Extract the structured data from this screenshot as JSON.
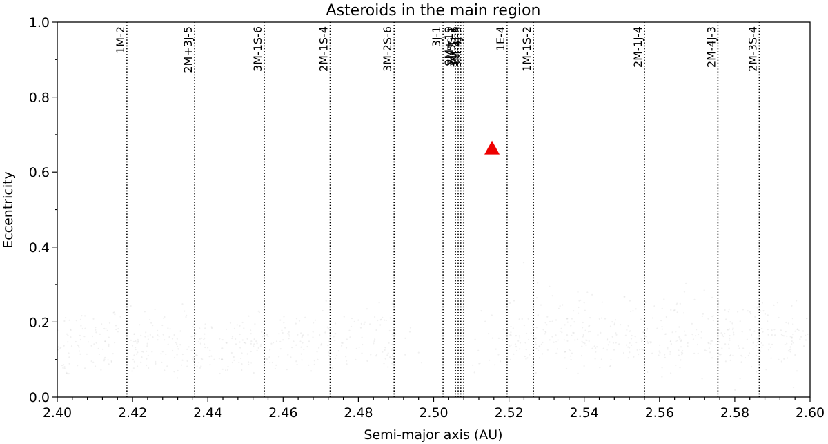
{
  "chart_data": {
    "type": "scatter",
    "title": "Asteroids in the main region",
    "xlabel": "Semi-major axis (AU)",
    "ylabel": "Eccentricity",
    "xlim": [
      2.4,
      2.6
    ],
    "ylim": [
      0.0,
      1.0
    ],
    "xticks": [
      "2.40",
      "2.42",
      "2.44",
      "2.46",
      "2.48",
      "2.50",
      "2.52",
      "2.54",
      "2.56",
      "2.58",
      "2.60"
    ],
    "yticks": [
      "0.0",
      "0.2",
      "0.4",
      "0.6",
      "0.8",
      "1.0"
    ],
    "grid": false,
    "point_color": "#a0a0a0",
    "marker_color": "#ee0000",
    "marker": {
      "shape": "triangle",
      "x": 2.5155,
      "y": 0.66
    },
    "resonances": [
      {
        "label": "1M-2",
        "x": 2.4185
      },
      {
        "label": "2M+3J-5",
        "x": 2.4365
      },
      {
        "label": "3M-1S-6",
        "x": 2.455
      },
      {
        "label": "2M-1S-4",
        "x": 2.4725
      },
      {
        "label": "3M-2S-6",
        "x": 2.4895
      },
      {
        "label": "3J-1",
        "x": 2.5025
      },
      {
        "label": "9M+19",
        "x": 2.5058
      },
      {
        "label": "5J-5S-1",
        "x": 2.5065
      },
      {
        "label": "3M-1J-6",
        "x": 2.5072
      },
      {
        "label": "3M-4J-5",
        "x": 2.508
      },
      {
        "label": "1E-4",
        "x": 2.5195
      },
      {
        "label": "1M-1S-2",
        "x": 2.5265
      },
      {
        "label": "2M-1J-4",
        "x": 2.556
      },
      {
        "label": "2M-4J-3",
        "x": 2.5755
      },
      {
        "label": "2M-3S-4",
        "x": 2.5865
      }
    ],
    "density_model": [
      {
        "x": [
          2.4,
          2.4175
        ],
        "bands": [
          {
            "e": 0.163,
            "sd": 0.04,
            "w": 60
          },
          {
            "e": 0.105,
            "sd": 0.025,
            "w": 30
          }
        ]
      },
      {
        "x": [
          2.4195,
          2.49
        ],
        "bands": [
          {
            "e": 0.16,
            "sd": 0.038,
            "w": 60
          },
          {
            "e": 0.1,
            "sd": 0.022,
            "w": 28
          }
        ]
      },
      {
        "x": [
          2.49,
          2.5
        ],
        "bands": [
          {
            "e": 0.14,
            "sd": 0.03,
            "w": 10
          }
        ]
      },
      {
        "x": [
          2.5085,
          2.52
        ],
        "bands": [
          {
            "e": 0.135,
            "sd": 0.045,
            "w": 28
          }
        ]
      },
      {
        "x": [
          2.52,
          2.6
        ],
        "bands": [
          {
            "e": 0.17,
            "sd": 0.055,
            "w": 70
          },
          {
            "e": 0.14,
            "sd": 0.025,
            "w": 30
          }
        ]
      }
    ]
  }
}
